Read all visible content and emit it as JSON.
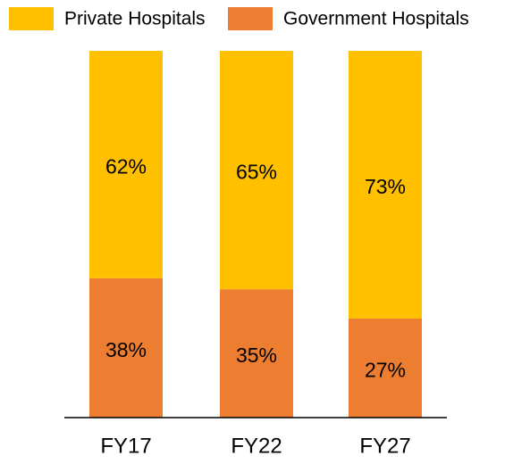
{
  "chart_data": {
    "type": "stacked_bar",
    "categories": [
      "FY17",
      "FY22",
      "FY27"
    ],
    "series": [
      {
        "name": "Private Hospitals",
        "color": "#ffc000",
        "values": [
          62,
          65,
          73
        ],
        "value_labels": [
          "62%",
          "65%",
          "73%"
        ]
      },
      {
        "name": "Government Hospitals",
        "color": "#ed7d31",
        "values": [
          38,
          35,
          27
        ],
        "value_labels": [
          "38%",
          "35%",
          "27%"
        ]
      }
    ],
    "ylim": [
      0,
      100
    ],
    "legend": "top"
  }
}
